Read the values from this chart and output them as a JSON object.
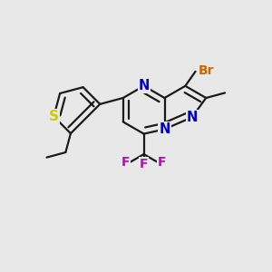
{
  "background_color": "#e8e8e8",
  "bond_color": "#1a1a1a",
  "bond_lw": 1.6,
  "dbo": 0.022,
  "figsize": [
    3.0,
    3.0
  ],
  "dpi": 100,
  "colors": {
    "N": "#0000cc",
    "S": "#cccc00",
    "Br": "#cc6600",
    "F": "#cc00cc",
    "C": "#1a1a1a"
  },
  "fs": {
    "N": 10.5,
    "S": 11,
    "Br": 10,
    "F": 10,
    "methyl": 9
  }
}
